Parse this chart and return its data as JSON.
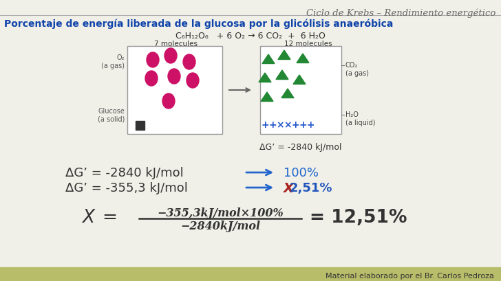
{
  "bg_color": "#f0f0e8",
  "header_text": "Ciclo de Krebs – Rendimiento energético",
  "header_color": "#666666",
  "title_text": "Porcentaje de energía liberada de la glucosa por la glicólisis anaeróbica",
  "title_color": "#1144aa",
  "equation_text": "C₆H₁₂O₆   + 6 O₂ → 6 CO₂  +  6 H₂O",
  "label_7mol": "7 molecules",
  "label_12mol": "12 molecules",
  "delta_g_label": "ΔG’ = -2840 kJ/mol",
  "line1_left": "ΔG’ = -2840 kJ/mol",
  "line1_right": "100%",
  "line2_left": "ΔG’ = -355,3 kJ/mol",
  "line2_right_main": "2,51%",
  "line2_right_x_color": "#aa2222",
  "line2_right_main_color": "#2255bb",
  "arrow_color": "#2266cc",
  "formula_num": "−355,3kJ/mol×100%",
  "formula_den": "−2840kJ/mol",
  "formula_result": "= 12,51%",
  "footer_text": "Material elaborado por el Br. Carlos Pedroza",
  "footer_bg": "#b8bd6a",
  "box_color": "#888888",
  "co2_label": "CO₂\n(a gas)",
  "h2o_label": "H₂O\n(a liquid)",
  "o2_label": "O₂\n(a gas)",
  "glucose_label": "Glucose\n(a solid)",
  "circle_color": "#cc1166",
  "triangle_color": "#228833",
  "plus_color": "#2255cc",
  "square_color": "#333333"
}
